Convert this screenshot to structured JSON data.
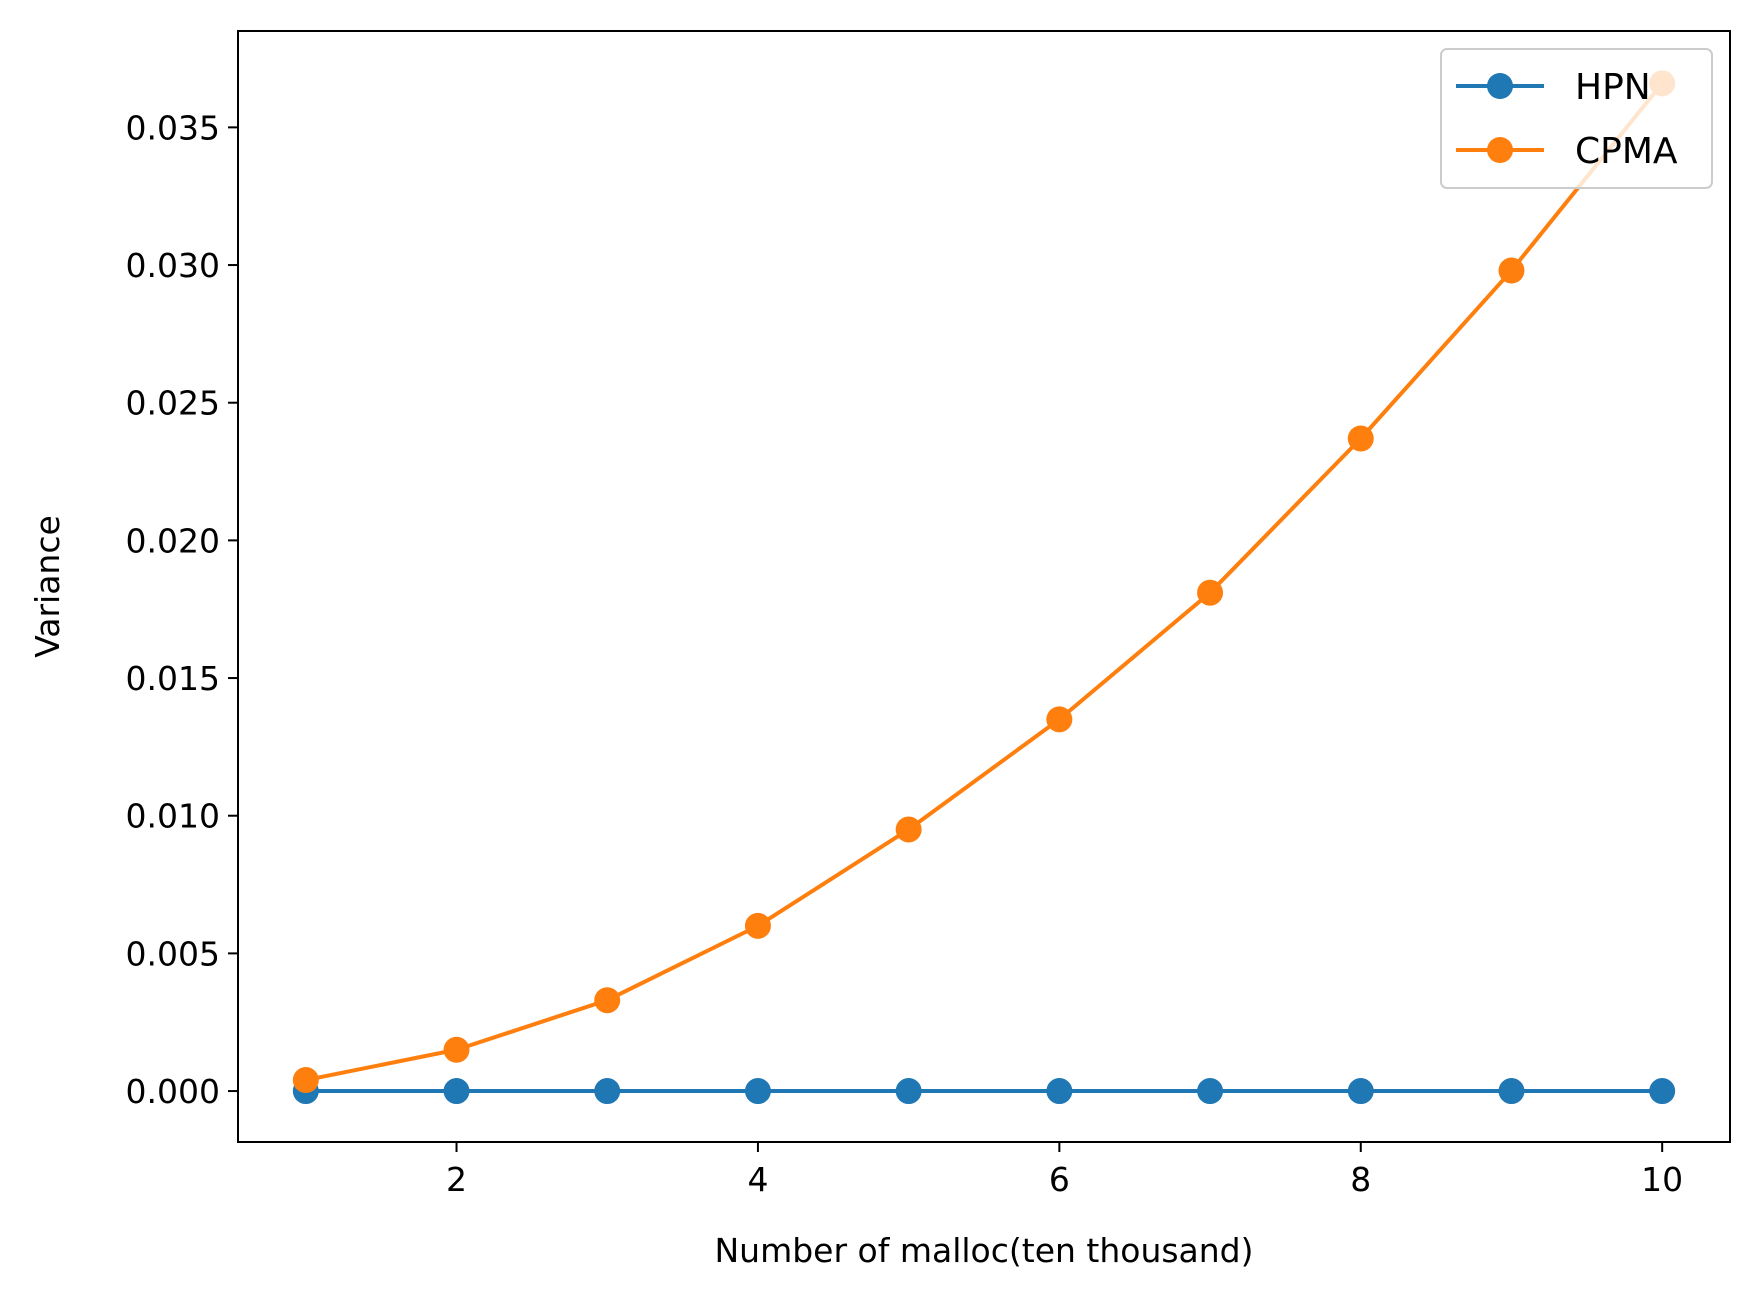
{
  "chart_data": {
    "type": "line",
    "xlabel": "Number of malloc(ten thousand)",
    "ylabel": "Variance",
    "x": [
      1,
      2,
      3,
      4,
      5,
      6,
      7,
      8,
      9,
      10
    ],
    "xlim": [
      0.55,
      10.45
    ],
    "ylim": [
      -0.00185,
      0.0385
    ],
    "xticks": [
      2,
      4,
      6,
      8,
      10
    ],
    "xtick_labels": [
      "2",
      "4",
      "6",
      "8",
      "10"
    ],
    "yticks": [
      0.0,
      0.005,
      0.01,
      0.015,
      0.02,
      0.025,
      0.03,
      0.035
    ],
    "ytick_labels": [
      "0.000",
      "0.005",
      "0.010",
      "0.015",
      "0.020",
      "0.025",
      "0.030",
      "0.035"
    ],
    "grid": false,
    "legend_position": "top-right",
    "series": [
      {
        "name": "HPN",
        "color": "#1f77b4",
        "marker": "circle",
        "values": [
          0.0,
          0.0,
          0.0,
          0.0,
          0.0,
          0.0,
          0.0,
          0.0,
          0.0,
          0.0
        ]
      },
      {
        "name": "CPMA",
        "color": "#ff7f0e",
        "marker": "circle",
        "values": [
          0.0004,
          0.0015,
          0.0033,
          0.006,
          0.0095,
          0.0135,
          0.0181,
          0.0237,
          0.0298,
          0.0366
        ]
      }
    ]
  }
}
